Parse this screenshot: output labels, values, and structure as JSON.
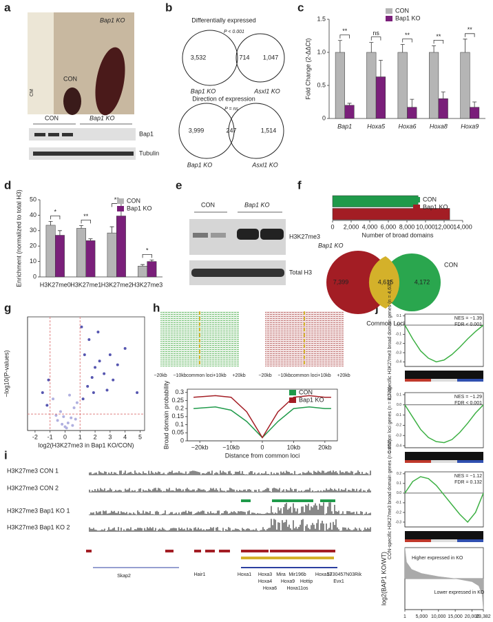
{
  "panel_labels": [
    "a",
    "b",
    "c",
    "d",
    "e",
    "f",
    "g",
    "h",
    "i",
    "j"
  ],
  "panel_a": {
    "photo_title": "Bap1 KO",
    "photo_con": "CON",
    "ruler": "CM",
    "lanes": [
      "CON",
      "Bap1 KO"
    ],
    "bands": [
      "Bap1",
      "Tubulin"
    ]
  },
  "panel_b": {
    "venn1": {
      "title": "Differentially expressed",
      "p": "P < 0.001",
      "left": "3,532",
      "overlap": "714",
      "right": "1,047",
      "left_label": "Bap1 KO",
      "right_label": "Asxl1 KO"
    },
    "venn2": {
      "title": "Direction of expression",
      "p": "P = ns",
      "left": "3,999",
      "overlap": "247",
      "right": "1,514",
      "left_label": "Bap1 KO",
      "right_label": "Asxl1 KO"
    }
  },
  "panel_e": {
    "lanes": [
      "CON",
      "Bap1 KO"
    ],
    "bands": [
      "H3K27me3",
      "Total H3"
    ]
  },
  "panel_f_venn": {
    "left": "7,399",
    "overlap": "4,615",
    "right": "4,172",
    "left_label": "Bap1 KO",
    "right_label": "CON",
    "bottom_label": "Common Loci"
  },
  "panel_h": {
    "heat_ticks": [
      "−20kb",
      "−10kb",
      "common loci",
      "+10kb",
      "+20kb"
    ]
  },
  "panel_i": {
    "tracks": [
      "H3K27me3 CON 1",
      "H3K27me3 CON 2",
      "H3K27me3 Bap1 KO 1",
      "H3K27me3 Bap1 KO 2"
    ],
    "genes": [
      "Skap2",
      "Hair1",
      "Hoxa1",
      "Hoxa3",
      "Mira",
      "Mir196b",
      "Hoxa13",
      "5730457N03Rik",
      "Hoxa4",
      "Hoxa9",
      "Hottip",
      "Hoxa6",
      "Hoxa11os",
      "Evx1"
    ]
  },
  "chart_data": [
    {
      "type": "bar",
      "ylabel": "Fold Change (2-ΔΔCt)",
      "legend": "top-right",
      "categories": [
        "Bap1",
        "Hoxa5",
        "Hoxa6",
        "Hoxa8",
        "Hoxa9"
      ],
      "series": [
        {
          "name": "CON",
          "color": "#b5b5b5",
          "values": [
            1,
            1,
            1,
            1,
            1
          ],
          "errors": [
            0.18,
            0.15,
            0.12,
            0.1,
            0.2
          ]
        },
        {
          "name": "Bap1 KO",
          "color": "#7a1f7a",
          "values": [
            0.2,
            0.63,
            0.17,
            0.3,
            0.17
          ],
          "errors": [
            0.03,
            0.25,
            0.12,
            0.1,
            0.08
          ]
        }
      ],
      "significance": [
        "**",
        "ns",
        "**",
        "**",
        "**"
      ],
      "ylim": [
        0,
        1.5
      ],
      "yticks": [
        0,
        0.5,
        {
          "value": 1,
          "label": "1.0"
        },
        1.5
      ]
    },
    {
      "type": "bar",
      "ylabel": "Enrichment (normalized to total H3)",
      "legend": "top-right",
      "categories": [
        "H3K27me0",
        "H3K27me1",
        "H3K27me2",
        "H3K27me3"
      ],
      "series": [
        {
          "name": "CON",
          "color": "#b5b5b5",
          "values": [
            33.5,
            31.5,
            28.5,
            7
          ],
          "errors": [
            2.5,
            1.8,
            4,
            1
          ]
        },
        {
          "name": "Bap1 KO",
          "color": "#7a1f7a",
          "values": [
            27,
            23.5,
            39.5,
            10
          ],
          "errors": [
            3,
            1.2,
            4.5,
            1
          ]
        }
      ],
      "significance": [
        "*",
        "**",
        "**",
        "*"
      ],
      "ylim": [
        0,
        50
      ],
      "yticks": [
        0,
        10,
        20,
        30,
        40,
        50
      ]
    },
    {
      "type": "barh",
      "xlabel": "Number of broad domains",
      "legend": "top-right",
      "series": [
        {
          "name": "CON",
          "color": "#1f9a4a",
          "values": [
            9200
          ]
        },
        {
          "name": "Bap1 KO",
          "color": "#a31d24",
          "values": [
            12600
          ]
        }
      ],
      "xlim": [
        0,
        14000
      ],
      "xticks": [
        0,
        {
          "value": 2000,
          "label": "2,000"
        },
        {
          "value": 4000,
          "label": "4,000"
        },
        {
          "value": 6000,
          "label": "6,000"
        },
        {
          "value": 8000,
          "label": "8,000"
        },
        {
          "value": 10000,
          "label": "10,000"
        },
        {
          "value": 12000,
          "label": "12,000"
        },
        {
          "value": 14000,
          "label": "14,000"
        }
      ]
    },
    {
      "type": "scatter",
      "xlabel": "log2(H3K27me3 in Bap1 KO/CON)",
      "ylabel": "−log10(P-values)",
      "series": [
        {
          "color": "#b0b0e0",
          "x": [
            -0.5,
            -0.3,
            0,
            0.2,
            0.4,
            0.6,
            -0.8,
            0.8,
            0.1,
            -0.2,
            -0.6,
            0.5,
            -0.1,
            0.3,
            0.7
          ],
          "values": [
            0.8,
            1.5,
            0.3,
            0.6,
            1,
            1.8,
            2.5,
            2.2,
            0.2,
            0.5,
            1.2,
            0.4,
            1.1,
            2.8,
            0.9
          ]
        },
        {
          "color": "#5656b0",
          "x": [
            1.2,
            1.5,
            1.8,
            2,
            2.3,
            2.6,
            3,
            3.5,
            4,
            1.3,
            1.6,
            2.2,
            1.9,
            2.8,
            4.8,
            1.1,
            -1.2,
            -1.5,
            -1.1,
            3.2
          ],
          "values": [
            2.5,
            3.5,
            4.2,
            5,
            5.5,
            4.5,
            6,
            5.2,
            6.5,
            6,
            7.2,
            7.8,
            3,
            3.2,
            3,
            8.2,
            2,
            3,
            4,
            4
          ]
        }
      ],
      "thresholds": {
        "x": [
          -1,
          1
        ],
        "y": 1.3
      },
      "xlim": [
        -2.5,
        5.3
      ],
      "ylim": [
        0,
        9
      ],
      "xticks": [
        -2,
        -1,
        0,
        1,
        2,
        3,
        4,
        5
      ]
    },
    {
      "type": "line",
      "xlabel": "Distance from common loci",
      "ylabel": "Broad domain probability",
      "legend": "top-right",
      "x": [
        -22000,
        -15000,
        -10000,
        -5000,
        0,
        5000,
        10000,
        15000,
        20000,
        22000
      ],
      "series": [
        {
          "name": "CON",
          "color": "#1f9a4a",
          "values": [
            0.2,
            0.21,
            0.19,
            0.12,
            0.02,
            0.12,
            0.2,
            0.21,
            0.2,
            0.2
          ]
        },
        {
          "name": "Bap1 KO",
          "color": "#a31d24",
          "values": [
            0.27,
            0.28,
            0.27,
            0.18,
            0.02,
            0.18,
            0.27,
            0.28,
            0.27,
            0.27
          ]
        }
      ],
      "xlim": [
        -24000,
        24000
      ],
      "xticks": [
        {
          "value": -20000,
          "label": "−20kb"
        },
        {
          "value": -10000,
          "label": "−10kb"
        },
        0,
        {
          "value": 10000,
          "label": "10kb"
        },
        {
          "value": 20000,
          "label": "20kb"
        }
      ],
      "ylim": [
        0,
        0.32
      ],
      "yticks": [
        0,
        0.05,
        0.1,
        0.15,
        0.2,
        0.25,
        0.3
      ]
    },
    {
      "type": "line",
      "ylabel": "KO-specific H3K27me3 broad domain genes (n = 4,630)",
      "ylabel_color": "#a31d24",
      "annotations": [
        "NES = −1.39",
        "FDR < 0.001"
      ],
      "x": [
        0,
        0.1,
        0.2,
        0.3,
        0.4,
        0.5,
        0.6,
        0.7,
        0.8,
        0.9,
        1
      ],
      "series": [
        {
          "color": "#3cb043",
          "values": [
            0,
            -0.15,
            -0.28,
            -0.36,
            -0.4,
            -0.38,
            -0.32,
            -0.24,
            -0.15,
            -0.07,
            0
          ]
        }
      ],
      "xlim": [
        0,
        1
      ],
      "ylim": [
        -0.45,
        0.12
      ],
      "yticks": [
        0.1,
        {
          "value": 0,
          "label": "0.0"
        },
        -0.1,
        -0.2,
        -0.3,
        -0.4
      ]
    },
    {
      "type": "line",
      "ylabel": "Common loci genes (n = 2,729)",
      "ylabel_color": "#c9a400",
      "annotations": [
        "NES = −1.29",
        "FDR < 0.001"
      ],
      "x": [
        0,
        0.1,
        0.2,
        0.3,
        0.4,
        0.5,
        0.6,
        0.7,
        0.8,
        0.9,
        1
      ],
      "series": [
        {
          "color": "#3cb043",
          "values": [
            0,
            -0.12,
            -0.24,
            -0.32,
            -0.36,
            -0.37,
            -0.34,
            -0.27,
            -0.18,
            -0.08,
            0
          ]
        }
      ],
      "xlim": [
        0,
        1
      ],
      "ylim": [
        -0.42,
        0.12
      ],
      "yticks": [
        0.1,
        {
          "value": 0,
          "label": "0.0"
        },
        -0.1,
        -0.2,
        -0.3,
        -0.4
      ]
    },
    {
      "type": "line",
      "ylabel": "CON-specific H3K27me3 broad domain genes (n = 652)",
      "ylabel_color": "#1f9a4a",
      "annotations": [
        "NES = −1.12",
        "FDR = 0.132"
      ],
      "x": [
        0,
        0.1,
        0.2,
        0.3,
        0.4,
        0.5,
        0.6,
        0.7,
        0.8,
        0.9,
        1
      ],
      "series": [
        {
          "color": "#3cb043",
          "values": [
            0,
            0.12,
            0.17,
            0.15,
            0.08,
            -0.02,
            -0.12,
            -0.22,
            -0.3,
            -0.2,
            0
          ]
        }
      ],
      "xlim": [
        0,
        1
      ],
      "ylim": [
        -0.35,
        0.22
      ],
      "yticks": [
        0.2,
        0.1,
        {
          "value": 0,
          "label": "0.0"
        },
        -0.1,
        -0.2,
        -0.3
      ]
    },
    {
      "type": "area",
      "ylabel": "log2(BAP1 KO/WT)",
      "annotations": [
        "Higher expressed in KO",
        "Lower expressed in KO"
      ],
      "x": [
        1,
        500,
        2000,
        5000,
        10000,
        15000,
        20000,
        22000,
        23000,
        23382
      ],
      "series": [
        {
          "color": "#aaaaaa",
          "values": [
            3,
            1.6,
            0.9,
            0.5,
            0.2,
            0,
            -0.3,
            -0.7,
            -1.5,
            -3
          ]
        }
      ],
      "xlim": [
        1,
        23382
      ],
      "ylim": [
        -3,
        3
      ],
      "xticks": [
        1,
        {
          "value": 5000,
          "label": "5,000"
        },
        {
          "value": 10000,
          "label": "10,000"
        },
        {
          "value": 15000,
          "label": "15,000"
        },
        {
          "value": 20000,
          "label": "20,000"
        },
        {
          "value": 23382,
          "label": "23,382"
        }
      ]
    }
  ]
}
